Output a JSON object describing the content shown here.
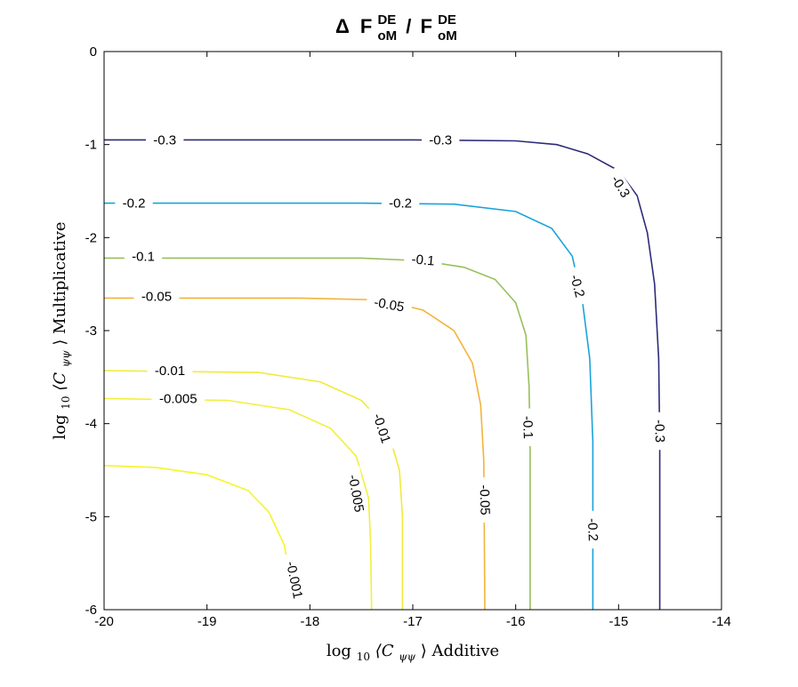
{
  "chart_data": {
    "type": "contour",
    "title": {
      "prefix": "Δ",
      "numerator": "F",
      "numerator_sup": "DE",
      "numerator_sub": "oM",
      "separator": "/",
      "denominator": "F",
      "denominator_sup": "DE",
      "denominator_sub": "oM"
    },
    "xlabel": {
      "prefix": "log",
      "sub": "10",
      "body": "⟨C",
      "body_sub": "ψψ",
      "suffix": "⟩ Additive"
    },
    "ylabel": {
      "prefix": "log",
      "sub": "10",
      "body": "⟨C",
      "body_sub": "ψψ",
      "suffix": "⟩ Multiplicative"
    },
    "xlim": [
      -20,
      -14
    ],
    "ylim": [
      -6,
      0
    ],
    "xticks": [
      "-20",
      "-19",
      "-18",
      "-17",
      "-16",
      "-15",
      "-14"
    ],
    "yticks": [
      "0",
      "-1",
      "-2",
      "-3",
      "-4",
      "-5",
      "-6"
    ],
    "grid": false,
    "levels": [
      {
        "level": -0.3,
        "label": "-0.3",
        "color": "#2d2a7a",
        "points": [
          [
            -20,
            -0.95
          ],
          [
            -17,
            -0.95
          ],
          [
            -16.0,
            -0.96
          ],
          [
            -15.6,
            -1.0
          ],
          [
            -15.3,
            -1.1
          ],
          [
            -15.0,
            -1.28
          ],
          [
            -14.82,
            -1.55
          ],
          [
            -14.72,
            -1.95
          ],
          [
            -14.65,
            -2.5
          ],
          [
            -14.61,
            -3.3
          ],
          [
            -14.6,
            -4.2
          ],
          [
            -14.6,
            -6
          ]
        ],
        "labels": [
          {
            "x": -19.41,
            "y": -0.95,
            "angle": 0
          },
          {
            "x": -16.73,
            "y": -0.95,
            "angle": 0
          },
          {
            "x": -14.98,
            "y": -1.45,
            "angle": 58
          },
          {
            "x": -14.6,
            "y": -4.08,
            "angle": 88
          }
        ]
      },
      {
        "level": -0.2,
        "label": "-0.2",
        "color": "#1aa3d9",
        "points": [
          [
            -20,
            -1.63
          ],
          [
            -17.5,
            -1.63
          ],
          [
            -16.6,
            -1.64
          ],
          [
            -16.0,
            -1.72
          ],
          [
            -15.65,
            -1.9
          ],
          [
            -15.45,
            -2.2
          ],
          [
            -15.35,
            -2.7
          ],
          [
            -15.28,
            -3.3
          ],
          [
            -15.25,
            -4.2
          ],
          [
            -15.25,
            -6
          ]
        ],
        "labels": [
          {
            "x": -19.71,
            "y": -1.63,
            "angle": 0
          },
          {
            "x": -17.12,
            "y": -1.63,
            "angle": 0
          },
          {
            "x": -15.4,
            "y": -2.52,
            "angle": 75
          },
          {
            "x": -15.25,
            "y": -5.14,
            "angle": 88
          }
        ]
      },
      {
        "level": -0.1,
        "label": "-0.1",
        "color": "#98bf5b",
        "points": [
          [
            -20,
            -2.22
          ],
          [
            -17.5,
            -2.22
          ],
          [
            -16.9,
            -2.25
          ],
          [
            -16.5,
            -2.32
          ],
          [
            -16.2,
            -2.45
          ],
          [
            -16.0,
            -2.7
          ],
          [
            -15.9,
            -3.05
          ],
          [
            -15.87,
            -3.6
          ],
          [
            -15.86,
            -4.3
          ],
          [
            -15.86,
            -6
          ]
        ],
        "labels": [
          {
            "x": -19.62,
            "y": -2.2,
            "angle": 0
          },
          {
            "x": -16.9,
            "y": -2.24,
            "angle": 5
          },
          {
            "x": -15.88,
            "y": -4.04,
            "angle": 88
          }
        ]
      },
      {
        "level": -0.05,
        "label": "-0.05",
        "color": "#f3b33a",
        "points": [
          [
            -20,
            -2.65
          ],
          [
            -18.1,
            -2.65
          ],
          [
            -17.3,
            -2.67
          ],
          [
            -16.9,
            -2.78
          ],
          [
            -16.6,
            -3.0
          ],
          [
            -16.42,
            -3.35
          ],
          [
            -16.34,
            -3.8
          ],
          [
            -16.31,
            -4.4
          ],
          [
            -16.3,
            -6
          ]
        ],
        "labels": [
          {
            "x": -19.49,
            "y": -2.63,
            "angle": 0
          },
          {
            "x": -17.23,
            "y": -2.72,
            "angle": 10
          },
          {
            "x": -16.3,
            "y": -4.82,
            "angle": 88
          }
        ]
      },
      {
        "level": -0.01,
        "label": "-0.01",
        "color": "#f1ea3a",
        "points": [
          [
            -20,
            -3.43
          ],
          [
            -18.5,
            -3.45
          ],
          [
            -17.9,
            -3.55
          ],
          [
            -17.5,
            -3.75
          ],
          [
            -17.25,
            -4.05
          ],
          [
            -17.13,
            -4.5
          ],
          [
            -17.1,
            -5.0
          ],
          [
            -17.1,
            -6
          ]
        ],
        "labels": [
          {
            "x": -19.36,
            "y": -3.43,
            "angle": 0
          },
          {
            "x": -17.3,
            "y": -4.05,
            "angle": 72
          }
        ]
      },
      {
        "level": -0.005,
        "label": "-0.005",
        "color": "#f2ef3e",
        "points": [
          [
            -20,
            -3.73
          ],
          [
            -18.8,
            -3.75
          ],
          [
            -18.2,
            -3.85
          ],
          [
            -17.8,
            -4.05
          ],
          [
            -17.55,
            -4.35
          ],
          [
            -17.43,
            -4.8
          ],
          [
            -17.41,
            -5.3
          ],
          [
            -17.4,
            -6
          ]
        ],
        "labels": [
          {
            "x": -19.28,
            "y": -3.73,
            "angle": 0
          },
          {
            "x": -17.55,
            "y": -4.75,
            "angle": 80
          }
        ]
      },
      {
        "level": -0.001,
        "label": "-0.001",
        "color": "#f5f52b",
        "points": [
          [
            -20,
            -4.45
          ],
          [
            -19.5,
            -4.47
          ],
          [
            -19.0,
            -4.55
          ],
          [
            -18.6,
            -4.72
          ],
          [
            -18.4,
            -4.95
          ],
          [
            -18.25,
            -5.3
          ],
          [
            -18.2,
            -5.6
          ]
        ],
        "labels": [
          {
            "x": -18.15,
            "y": -5.68,
            "angle": 78
          }
        ]
      }
    ]
  }
}
